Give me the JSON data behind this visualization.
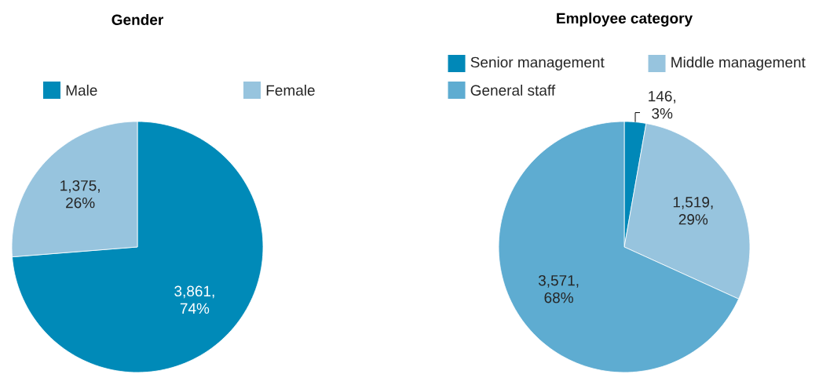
{
  "chart_data": [
    {
      "type": "pie",
      "title": "Gender",
      "categories": [
        "Male",
        "Female"
      ],
      "values": [
        3861,
        1375
      ],
      "colors": [
        "#008ab8",
        "#97c4de"
      ],
      "value_labels": [
        "3,861, 74%",
        "1,375, 26%"
      ],
      "legend": "top"
    },
    {
      "type": "pie",
      "title": "Employee category",
      "categories": [
        "Senior management",
        "Middle management",
        "General staff"
      ],
      "values": [
        146,
        1519,
        3571
      ],
      "colors": [
        "#0088b8",
        "#97c4de",
        "#5eacd1"
      ],
      "value_labels": [
        "146, 3%",
        "1,519, 29%",
        "3,571, 68%"
      ],
      "legend": "top"
    }
  ]
}
